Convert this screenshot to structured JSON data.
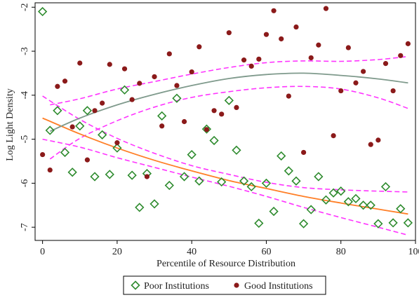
{
  "chart_data": {
    "type": "scatter",
    "title": "",
    "xlabel": "Percentile of Resource Distribution",
    "ylabel": "Log Light Density",
    "xlim": [
      -2,
      100
    ],
    "ylim": [
      -7.3,
      -1.9
    ],
    "x_ticks": [
      0,
      20,
      40,
      60,
      80,
      100
    ],
    "x_tick_labels": [
      "0",
      "20",
      "40",
      "60",
      "80",
      "100"
    ],
    "y_ticks": [
      -2,
      -3,
      -4,
      -5,
      -6,
      -7
    ],
    "y_tick_labels": [
      "-2",
      "-3",
      "-4",
      "-5",
      "-6",
      "-7"
    ],
    "grid": false,
    "legend_position": "bottom",
    "colors": {
      "poor_marker": "#2e8b2e",
      "good_marker": "#8b1a1a",
      "poor_fit": "#ff7f27",
      "good_fit": "#7f9a8c",
      "ci_band": "#ff33ff"
    },
    "series": [
      {
        "name": "Poor Institutions",
        "marker": "diamond-hollow",
        "points": [
          [
            0,
            -2.1
          ],
          [
            2,
            -4.8
          ],
          [
            4,
            -4.35
          ],
          [
            6,
            -5.3
          ],
          [
            8,
            -5.75
          ],
          [
            10,
            -4.7
          ],
          [
            12,
            -4.35
          ],
          [
            14,
            -5.85
          ],
          [
            16,
            -4.9
          ],
          [
            18,
            -5.8
          ],
          [
            20,
            -5.2
          ],
          [
            22,
            -3.88
          ],
          [
            24,
            -5.82
          ],
          [
            26,
            -6.55
          ],
          [
            28,
            -5.78
          ],
          [
            30,
            -6.47
          ],
          [
            32,
            -4.47
          ],
          [
            34,
            -6.05
          ],
          [
            36,
            -4.07
          ],
          [
            38,
            -5.85
          ],
          [
            40,
            -5.35
          ],
          [
            42,
            -5.95
          ],
          [
            44,
            -4.77
          ],
          [
            46,
            -5.03
          ],
          [
            48,
            -5.97
          ],
          [
            50,
            -4.12
          ],
          [
            52,
            -5.25
          ],
          [
            54,
            -5.95
          ],
          [
            56,
            -6.08
          ],
          [
            58,
            -6.91
          ],
          [
            60,
            -6.0
          ],
          [
            62,
            -6.64
          ],
          [
            64,
            -5.38
          ],
          [
            66,
            -5.72
          ],
          [
            68,
            -5.95
          ],
          [
            70,
            -6.92
          ],
          [
            72,
            -6.6
          ],
          [
            74,
            -5.85
          ],
          [
            76,
            -6.38
          ],
          [
            78,
            -6.22
          ],
          [
            80,
            -6.18
          ],
          [
            82,
            -6.42
          ],
          [
            84,
            -6.35
          ],
          [
            86,
            -6.5
          ],
          [
            88,
            -6.5
          ],
          [
            90,
            -6.92
          ],
          [
            92,
            -6.08
          ],
          [
            94,
            -6.9
          ],
          [
            96,
            -6.58
          ],
          [
            98,
            -6.9
          ]
        ]
      },
      {
        "name": "Good Institutions",
        "marker": "circle-filled",
        "points": [
          [
            0,
            -5.35
          ],
          [
            2,
            -5.7
          ],
          [
            4,
            -3.8
          ],
          [
            6,
            -3.68
          ],
          [
            8,
            -4.72
          ],
          [
            10,
            -3.27
          ],
          [
            12,
            -5.47
          ],
          [
            14,
            -4.35
          ],
          [
            16,
            -4.18
          ],
          [
            18,
            -3.3
          ],
          [
            20,
            -5.08
          ],
          [
            22,
            -3.4
          ],
          [
            24,
            -4.1
          ],
          [
            26,
            -3.73
          ],
          [
            28,
            -5.85
          ],
          [
            30,
            -3.58
          ],
          [
            32,
            -4.7
          ],
          [
            34,
            -3.06
          ],
          [
            36,
            -3.78
          ],
          [
            38,
            -4.6
          ],
          [
            40,
            -3.47
          ],
          [
            42,
            -2.9
          ],
          [
            44,
            -4.78
          ],
          [
            46,
            -4.35
          ],
          [
            48,
            -4.43
          ],
          [
            50,
            -2.58
          ],
          [
            52,
            -4.28
          ],
          [
            54,
            -3.2
          ],
          [
            56,
            -3.34
          ],
          [
            58,
            -3.18
          ],
          [
            60,
            -2.62
          ],
          [
            62,
            -2.08
          ],
          [
            64,
            -2.72
          ],
          [
            66,
            -4.02
          ],
          [
            68,
            -2.45
          ],
          [
            70,
            -5.3
          ],
          [
            72,
            -3.15
          ],
          [
            74,
            -2.86
          ],
          [
            76,
            -2.03
          ],
          [
            78,
            -4.92
          ],
          [
            80,
            -3.9
          ],
          [
            82,
            -2.92
          ],
          [
            84,
            -3.72
          ],
          [
            86,
            -3.46
          ],
          [
            88,
            -5.12
          ],
          [
            90,
            -5.02
          ],
          [
            92,
            -3.28
          ],
          [
            94,
            -3.9
          ],
          [
            96,
            -3.1
          ],
          [
            98,
            -2.83
          ]
        ]
      }
    ],
    "fit_lines": [
      {
        "of": "Poor Institutions",
        "x": [
          0,
          10,
          20,
          30,
          40,
          50,
          60,
          70,
          80,
          90,
          98
        ],
        "fit": [
          -4.52,
          -4.88,
          -5.2,
          -5.48,
          -5.72,
          -5.94,
          -6.12,
          -6.3,
          -6.45,
          -6.59,
          -6.7
        ],
        "ci_low": [
          -5.0,
          -5.18,
          -5.42,
          -5.64,
          -5.86,
          -6.07,
          -6.3,
          -6.55,
          -6.78,
          -7.0,
          -7.18
        ],
        "ci_high": [
          -4.02,
          -4.55,
          -4.98,
          -5.32,
          -5.6,
          -5.8,
          -5.98,
          -6.1,
          -6.15,
          -6.18,
          -6.2
        ]
      },
      {
        "of": "Good Institutions",
        "x": [
          2,
          10,
          20,
          30,
          40,
          50,
          60,
          70,
          80,
          90,
          98
        ],
        "fit": [
          -4.82,
          -4.52,
          -4.22,
          -3.98,
          -3.78,
          -3.62,
          -3.53,
          -3.5,
          -3.55,
          -3.63,
          -3.72
        ],
        "ci_low": [
          -5.45,
          -4.98,
          -4.58,
          -4.27,
          -4.05,
          -3.92,
          -3.83,
          -3.8,
          -3.86,
          -4.06,
          -4.3
        ],
        "ci_high": [
          -4.22,
          -4.08,
          -3.86,
          -3.69,
          -3.52,
          -3.37,
          -3.26,
          -3.22,
          -3.23,
          -3.19,
          -3.12
        ]
      }
    ],
    "legend": [
      {
        "label": "Poor Institutions",
        "marker": "diamond-hollow"
      },
      {
        "label": "Good Institutions",
        "marker": "circle-filled"
      }
    ]
  }
}
